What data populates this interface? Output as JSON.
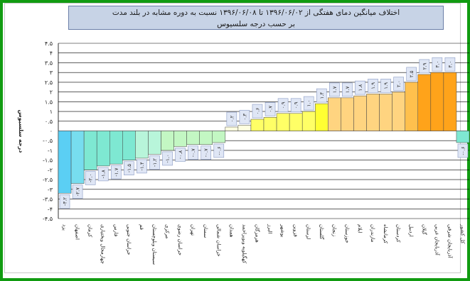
{
  "chart_data": {
    "type": "bar",
    "title_line1": "اختلاف میانگین دمای هفتگی از ۱۳۹۶/۰۶/۰۲ تا ۱۳۹۶/۰۶/۰۸ نسبت به دوره مشابه در بلند مدت",
    "title_line2": "بر حسب درجه سلسیوس",
    "ylabel": "درجه سلسیوس",
    "ylim": [
      -4.5,
      4.5
    ],
    "yticks": [
      "-۴.۵",
      "-۴",
      "-۳.۵",
      "-۳",
      "-۲.۵",
      "-۲",
      "-۱.۵",
      "-۱",
      "-۰.۵",
      "۰",
      "۰.۵",
      "۱",
      "۱.۵",
      "۲",
      "۲.۵",
      "۳",
      "۳.۵",
      "۴",
      "۴.۵"
    ],
    "grid": true,
    "categories": [
      "یزد",
      "اصفهان",
      "کرمان",
      "چهارمحال وبختیاری",
      "فارس",
      "خراسان جنوبی",
      "قم",
      "سیستان وبلوچستان",
      "مرکزی",
      "خراسان رضوی",
      "تهران",
      "سمنان",
      "خراسان شمالی",
      "همدان",
      "کهگیلویه وبویراحمد",
      "هرمزگان",
      "البرز",
      "بوشهر",
      "قزوین",
      "لرستان",
      "گلستان",
      "زنجان",
      "خوزستان",
      "ایلام",
      "مازندران",
      "کرمانشاه",
      "کردستان",
      "اردبیل",
      "گیلان",
      "آذربایجان غربی",
      "آذربایجان شرقی",
      "کل کشور"
    ],
    "values": [
      -3.2,
      -2.7,
      -2.0,
      -1.8,
      -1.7,
      -1.5,
      -1.4,
      -1.2,
      -1.0,
      -0.8,
      -0.7,
      -0.7,
      -0.6,
      0.2,
      0.3,
      0.6,
      0.7,
      0.9,
      0.9,
      1.0,
      1.4,
      1.7,
      1.7,
      1.8,
      1.9,
      1.9,
      2.0,
      2.5,
      2.9,
      3.0,
      3.0,
      -0.6
    ],
    "value_labels": [
      "-۳.۲",
      "-۲.۷",
      "-۲.۰",
      "-۱.۸",
      "-۱.۷",
      "-۱.۵",
      "-۱.۴",
      "-۱.۲",
      "-۱.۰",
      "-۰.۸",
      "-۰.۷",
      "-۰.۷",
      "-۰.۶",
      "۰.۲",
      "۰.۳",
      "۰.۶",
      "۰.۷",
      "۰.۹",
      "۰.۹",
      "۱.۰",
      "۱.۴",
      "۱.۷",
      "۱.۷",
      "۱.۸",
      "۱.۹",
      "۱.۹",
      "۲.۰",
      "۲.۵",
      "۲.۹",
      "۳.۰",
      "۳.۰",
      "-۰.۶"
    ],
    "colors": [
      "#5bcff4",
      "#77ddef",
      "#7ee8d2",
      "#7ee8d2",
      "#7ee8d2",
      "#7ee8d2",
      "#b8f5da",
      "#b8f5da",
      "#c3f7c3",
      "#c3f7c3",
      "#c3f7c3",
      "#c3f7c3",
      "#c3f7c3",
      "#ffffe0",
      "#ffffe0",
      "#ffff66",
      "#ffff66",
      "#ffff66",
      "#ffff66",
      "#ffff66",
      "#ffff33",
      "#ffd480",
      "#ffd480",
      "#ffd480",
      "#ffd480",
      "#ffd480",
      "#ffd480",
      "#ffc04d",
      "#ffa31a",
      "#ffa31a",
      "#ffa31a",
      "#7ee8d2"
    ],
    "frame_color": "#119b11",
    "title_bg": "#c7d3e6",
    "label_box_bg": "#dfe6f5"
  }
}
